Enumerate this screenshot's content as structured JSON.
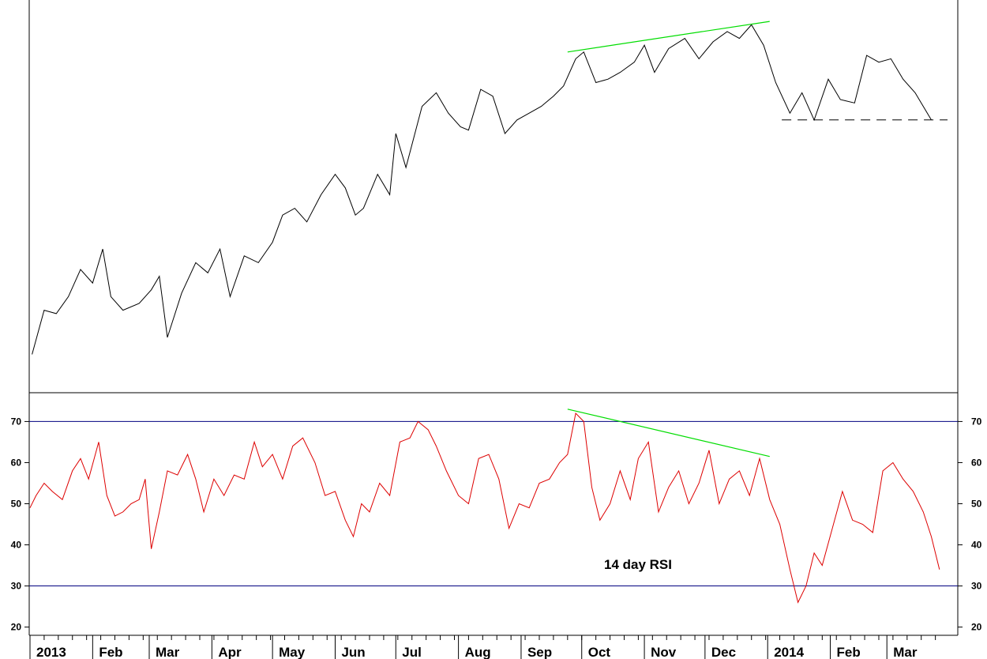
{
  "chart_data": {
    "type": "line",
    "x_axis": {
      "labels": [
        "2013",
        "Feb",
        "Mar",
        "Apr",
        "May",
        "Jun",
        "Jul",
        "Aug",
        "Sep",
        "Oct",
        "Nov",
        "Dec",
        "2014",
        "Feb",
        "Mar"
      ],
      "xlim": [
        "2013-01-01",
        "2014-03-31"
      ]
    },
    "price_panel": {
      "series": [
        {
          "color": "#000000",
          "points": [
            [
              "2013-01-02",
              0.05
            ],
            [
              "2013-01-08",
              0.18
            ],
            [
              "2013-01-14",
              0.17
            ],
            [
              "2013-01-20",
              0.22
            ],
            [
              "2013-01-26",
              0.3
            ],
            [
              "2013-02-01",
              0.26
            ],
            [
              "2013-02-06",
              0.36
            ],
            [
              "2013-02-10",
              0.22
            ],
            [
              "2013-02-16",
              0.18
            ],
            [
              "2013-02-24",
              0.2
            ],
            [
              "2013-03-02",
              0.24
            ],
            [
              "2013-03-06",
              0.28
            ],
            [
              "2013-03-10",
              0.1
            ],
            [
              "2013-03-17",
              0.23
            ],
            [
              "2013-03-24",
              0.32
            ],
            [
              "2013-03-30",
              0.29
            ],
            [
              "2013-04-05",
              0.36
            ],
            [
              "2013-04-10",
              0.22
            ],
            [
              "2013-04-17",
              0.34
            ],
            [
              "2013-04-24",
              0.32
            ],
            [
              "2013-05-01",
              0.38
            ],
            [
              "2013-05-06",
              0.46
            ],
            [
              "2013-05-12",
              0.48
            ],
            [
              "2013-05-18",
              0.44
            ],
            [
              "2013-05-25",
              0.52
            ],
            [
              "2013-06-01",
              0.58
            ],
            [
              "2013-06-06",
              0.54
            ],
            [
              "2013-06-11",
              0.46
            ],
            [
              "2013-06-15",
              0.48
            ],
            [
              "2013-06-22",
              0.58
            ],
            [
              "2013-06-28",
              0.52
            ],
            [
              "2013-07-01",
              0.7
            ],
            [
              "2013-07-06",
              0.6
            ],
            [
              "2013-07-14",
              0.78
            ],
            [
              "2013-07-21",
              0.82
            ],
            [
              "2013-07-27",
              0.76
            ],
            [
              "2013-08-02",
              0.72
            ],
            [
              "2013-08-06",
              0.71
            ],
            [
              "2013-08-12",
              0.83
            ],
            [
              "2013-08-18",
              0.81
            ],
            [
              "2013-08-24",
              0.7
            ],
            [
              "2013-08-30",
              0.74
            ],
            [
              "2013-09-05",
              0.76
            ],
            [
              "2013-09-11",
              0.78
            ],
            [
              "2013-09-17",
              0.81
            ],
            [
              "2013-09-22",
              0.84
            ],
            [
              "2013-09-28",
              0.92
            ],
            [
              "2013-10-02",
              0.94
            ],
            [
              "2013-10-08",
              0.85
            ],
            [
              "2013-10-14",
              0.86
            ],
            [
              "2013-10-20",
              0.88
            ],
            [
              "2013-10-27",
              0.91
            ],
            [
              "2013-11-01",
              0.96
            ],
            [
              "2013-11-06",
              0.88
            ],
            [
              "2013-11-13",
              0.95
            ],
            [
              "2013-11-21",
              0.98
            ],
            [
              "2013-11-28",
              0.92
            ],
            [
              "2013-12-05",
              0.97
            ],
            [
              "2013-12-12",
              1.0
            ],
            [
              "2013-12-18",
              0.98
            ],
            [
              "2013-12-24",
              1.02
            ],
            [
              "2013-12-30",
              0.96
            ],
            [
              "2014-01-05",
              0.85
            ],
            [
              "2014-01-12",
              0.76
            ],
            [
              "2014-01-18",
              0.82
            ],
            [
              "2014-01-24",
              0.74
            ],
            [
              "2014-01-31",
              0.86
            ],
            [
              "2014-02-06",
              0.8
            ],
            [
              "2014-02-13",
              0.79
            ],
            [
              "2014-02-19",
              0.93
            ],
            [
              "2014-02-25",
              0.91
            ],
            [
              "2014-03-03",
              0.92
            ],
            [
              "2014-03-09",
              0.86
            ],
            [
              "2014-03-15",
              0.82
            ],
            [
              "2014-03-23",
              0.74
            ]
          ]
        }
      ],
      "support_line": {
        "from": [
          "2014-01-08",
          0.74
        ],
        "to": [
          "2014-03-31",
          0.74
        ],
        "style": "dashed",
        "color": "#000000"
      },
      "trend_line": {
        "from": [
          "2013-09-24",
          0.94
        ],
        "to": [
          "2014-01-02",
          1.03
        ],
        "color": "#00dd00"
      }
    },
    "rsi_panel": {
      "annotation": "14 day RSI",
      "ylim": [
        18,
        77
      ],
      "y_ticks": [
        20,
        30,
        40,
        50,
        60,
        70
      ],
      "reference_lines": [
        70,
        30
      ],
      "series": [
        {
          "color": "#dd0000",
          "points": [
            [
              "2013-01-01",
              49
            ],
            [
              "2013-01-04",
              52
            ],
            [
              "2013-01-08",
              55
            ],
            [
              "2013-01-12",
              53
            ],
            [
              "2013-01-17",
              51
            ],
            [
              "2013-01-22",
              58
            ],
            [
              "2013-01-26",
              61
            ],
            [
              "2013-01-30",
              56
            ],
            [
              "2013-02-04",
              65
            ],
            [
              "2013-02-08",
              52
            ],
            [
              "2013-02-12",
              47
            ],
            [
              "2013-02-16",
              48
            ],
            [
              "2013-02-20",
              50
            ],
            [
              "2013-02-24",
              51
            ],
            [
              "2013-02-27",
              56
            ],
            [
              "2013-03-02",
              39
            ],
            [
              "2013-03-06",
              48
            ],
            [
              "2013-03-10",
              58
            ],
            [
              "2013-03-15",
              57
            ],
            [
              "2013-03-20",
              62
            ],
            [
              "2013-03-24",
              56
            ],
            [
              "2013-03-28",
              48
            ],
            [
              "2013-04-02",
              56
            ],
            [
              "2013-04-07",
              52
            ],
            [
              "2013-04-12",
              57
            ],
            [
              "2013-04-17",
              56
            ],
            [
              "2013-04-22",
              65
            ],
            [
              "2013-04-26",
              59
            ],
            [
              "2013-05-01",
              62
            ],
            [
              "2013-05-06",
              56
            ],
            [
              "2013-05-11",
              64
            ],
            [
              "2013-05-16",
              66
            ],
            [
              "2013-05-22",
              60
            ],
            [
              "2013-05-27",
              52
            ],
            [
              "2013-06-01",
              53
            ],
            [
              "2013-06-06",
              46
            ],
            [
              "2013-06-10",
              42
            ],
            [
              "2013-06-14",
              50
            ],
            [
              "2013-06-18",
              48
            ],
            [
              "2013-06-23",
              55
            ],
            [
              "2013-06-28",
              52
            ],
            [
              "2013-07-03",
              65
            ],
            [
              "2013-07-08",
              66
            ],
            [
              "2013-07-12",
              70
            ],
            [
              "2013-07-17",
              68
            ],
            [
              "2013-07-21",
              64
            ],
            [
              "2013-07-26",
              58
            ],
            [
              "2013-08-01",
              52
            ],
            [
              "2013-08-06",
              50
            ],
            [
              "2013-08-11",
              61
            ],
            [
              "2013-08-16",
              62
            ],
            [
              "2013-08-21",
              56
            ],
            [
              "2013-08-26",
              44
            ],
            [
              "2013-08-31",
              50
            ],
            [
              "2013-09-05",
              49
            ],
            [
              "2013-09-10",
              55
            ],
            [
              "2013-09-15",
              56
            ],
            [
              "2013-09-20",
              60
            ],
            [
              "2013-09-24",
              62
            ],
            [
              "2013-09-28",
              72
            ],
            [
              "2013-10-02",
              70
            ],
            [
              "2013-10-06",
              54
            ],
            [
              "2013-10-10",
              46
            ],
            [
              "2013-10-15",
              50
            ],
            [
              "2013-10-20",
              58
            ],
            [
              "2013-10-25",
              51
            ],
            [
              "2013-10-29",
              61
            ],
            [
              "2013-11-03",
              65
            ],
            [
              "2013-11-08",
              48
            ],
            [
              "2013-11-13",
              54
            ],
            [
              "2013-11-18",
              58
            ],
            [
              "2013-11-23",
              50
            ],
            [
              "2013-11-28",
              55
            ],
            [
              "2013-12-03",
              63
            ],
            [
              "2013-12-08",
              50
            ],
            [
              "2013-12-13",
              56
            ],
            [
              "2013-12-18",
              58
            ],
            [
              "2013-12-23",
              52
            ],
            [
              "2013-12-28",
              61
            ],
            [
              "2014-01-02",
              51
            ],
            [
              "2014-01-07",
              45
            ],
            [
              "2014-01-12",
              34
            ],
            [
              "2014-01-16",
              26
            ],
            [
              "2014-01-20",
              30
            ],
            [
              "2014-01-24",
              38
            ],
            [
              "2014-01-28",
              35
            ],
            [
              "2014-02-02",
              44
            ],
            [
              "2014-02-07",
              53
            ],
            [
              "2014-02-12",
              46
            ],
            [
              "2014-02-17",
              45
            ],
            [
              "2014-02-22",
              43
            ],
            [
              "2014-02-27",
              58
            ],
            [
              "2014-03-04",
              60
            ],
            [
              "2014-03-09",
              56
            ],
            [
              "2014-03-14",
              53
            ],
            [
              "2014-03-19",
              48
            ],
            [
              "2014-03-23",
              42
            ],
            [
              "2014-03-27",
              34
            ]
          ]
        }
      ],
      "trend_line": {
        "from": [
          "2013-09-24",
          73
        ],
        "to": [
          "2014-01-02",
          61.5
        ],
        "color": "#00dd00"
      }
    }
  }
}
